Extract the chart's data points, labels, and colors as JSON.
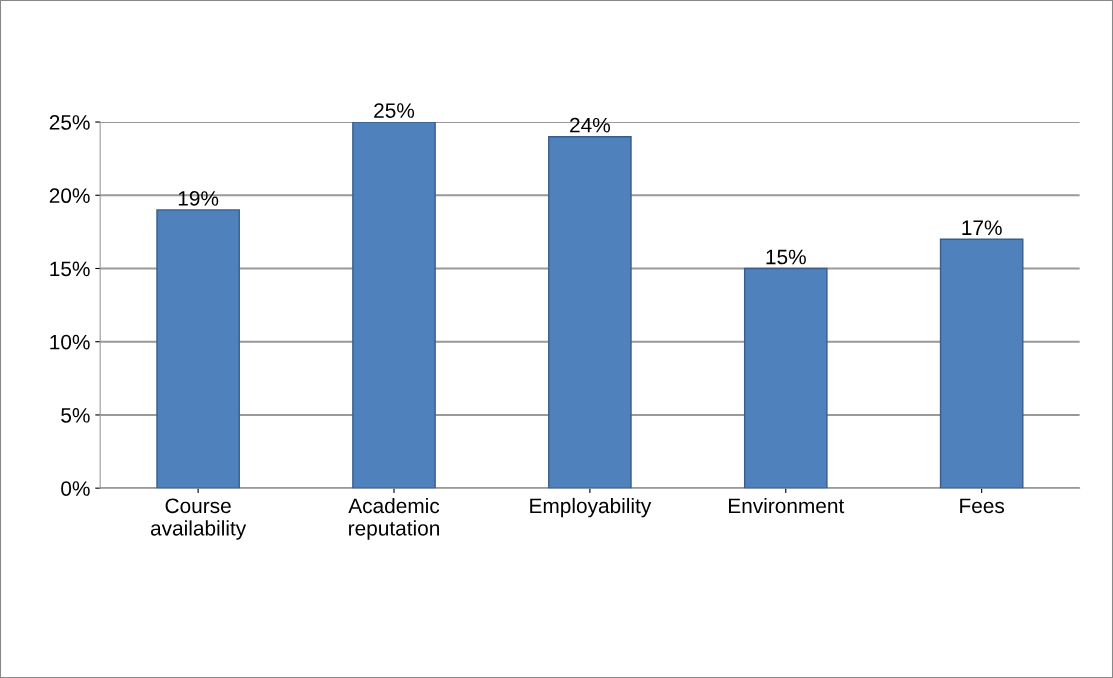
{
  "chart_data": {
    "type": "bar",
    "categories": [
      "Course\navailability",
      "Academic\nreputation",
      "Employability",
      "Environment",
      "Fees"
    ],
    "values": [
      19,
      25,
      24,
      15,
      17
    ],
    "value_labels": [
      "19%",
      "25%",
      "24%",
      "15%",
      "17%"
    ],
    "color": "#4f81bd",
    "ylim": [
      0,
      25
    ],
    "yticks": [
      {
        "value": 0,
        "label": "0%"
      },
      {
        "value": 5,
        "label": "5%"
      },
      {
        "value": 10,
        "label": "10%"
      },
      {
        "value": 15,
        "label": "15%"
      },
      {
        "value": 20,
        "label": "20%"
      },
      {
        "value": 25,
        "label": "25%"
      }
    ],
    "grid": "y"
  }
}
